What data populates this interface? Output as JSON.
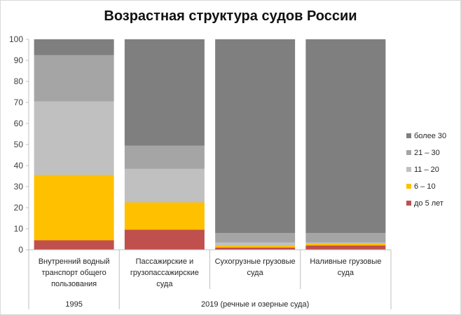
{
  "chart_data": {
    "type": "bar",
    "stacked": true,
    "title": "Возрастная структура судов России",
    "categories": [
      [
        "Внутренний водный",
        "транспорт общего",
        "пользования"
      ],
      [
        "Пассажирские и",
        "грузопассажирские",
        "суда"
      ],
      [
        "Сухогрузные грузовые",
        "суда"
      ],
      [
        "Наливные грузовые",
        "суда"
      ]
    ],
    "groups": [
      {
        "label": "1995",
        "span": 1
      },
      {
        "label": "2019 (речные  и озерные суда)",
        "span": 3
      }
    ],
    "series": [
      {
        "name": "до 5 лет",
        "color": "#c0504d",
        "values": [
          4.5,
          9.5,
          1,
          2
        ]
      },
      {
        "name": "6 – 10",
        "color": "#ffc000",
        "values": [
          31,
          13,
          1,
          1
        ]
      },
      {
        "name": "11 – 20",
        "color": "#c0c0c0",
        "values": [
          35,
          16,
          1.5,
          0.5
        ]
      },
      {
        "name": "21 – 30",
        "color": "#a5a5a5",
        "values": [
          22,
          11,
          4.5,
          4.5
        ]
      },
      {
        "name": "более 30",
        "color": "#7f7f7f",
        "values": [
          7.5,
          50.5,
          92,
          92
        ]
      }
    ],
    "ylim": [
      0,
      100
    ],
    "yticks": [
      0,
      10,
      20,
      30,
      40,
      50,
      60,
      70,
      80,
      90,
      100
    ],
    "grid": false,
    "legend": "right"
  }
}
